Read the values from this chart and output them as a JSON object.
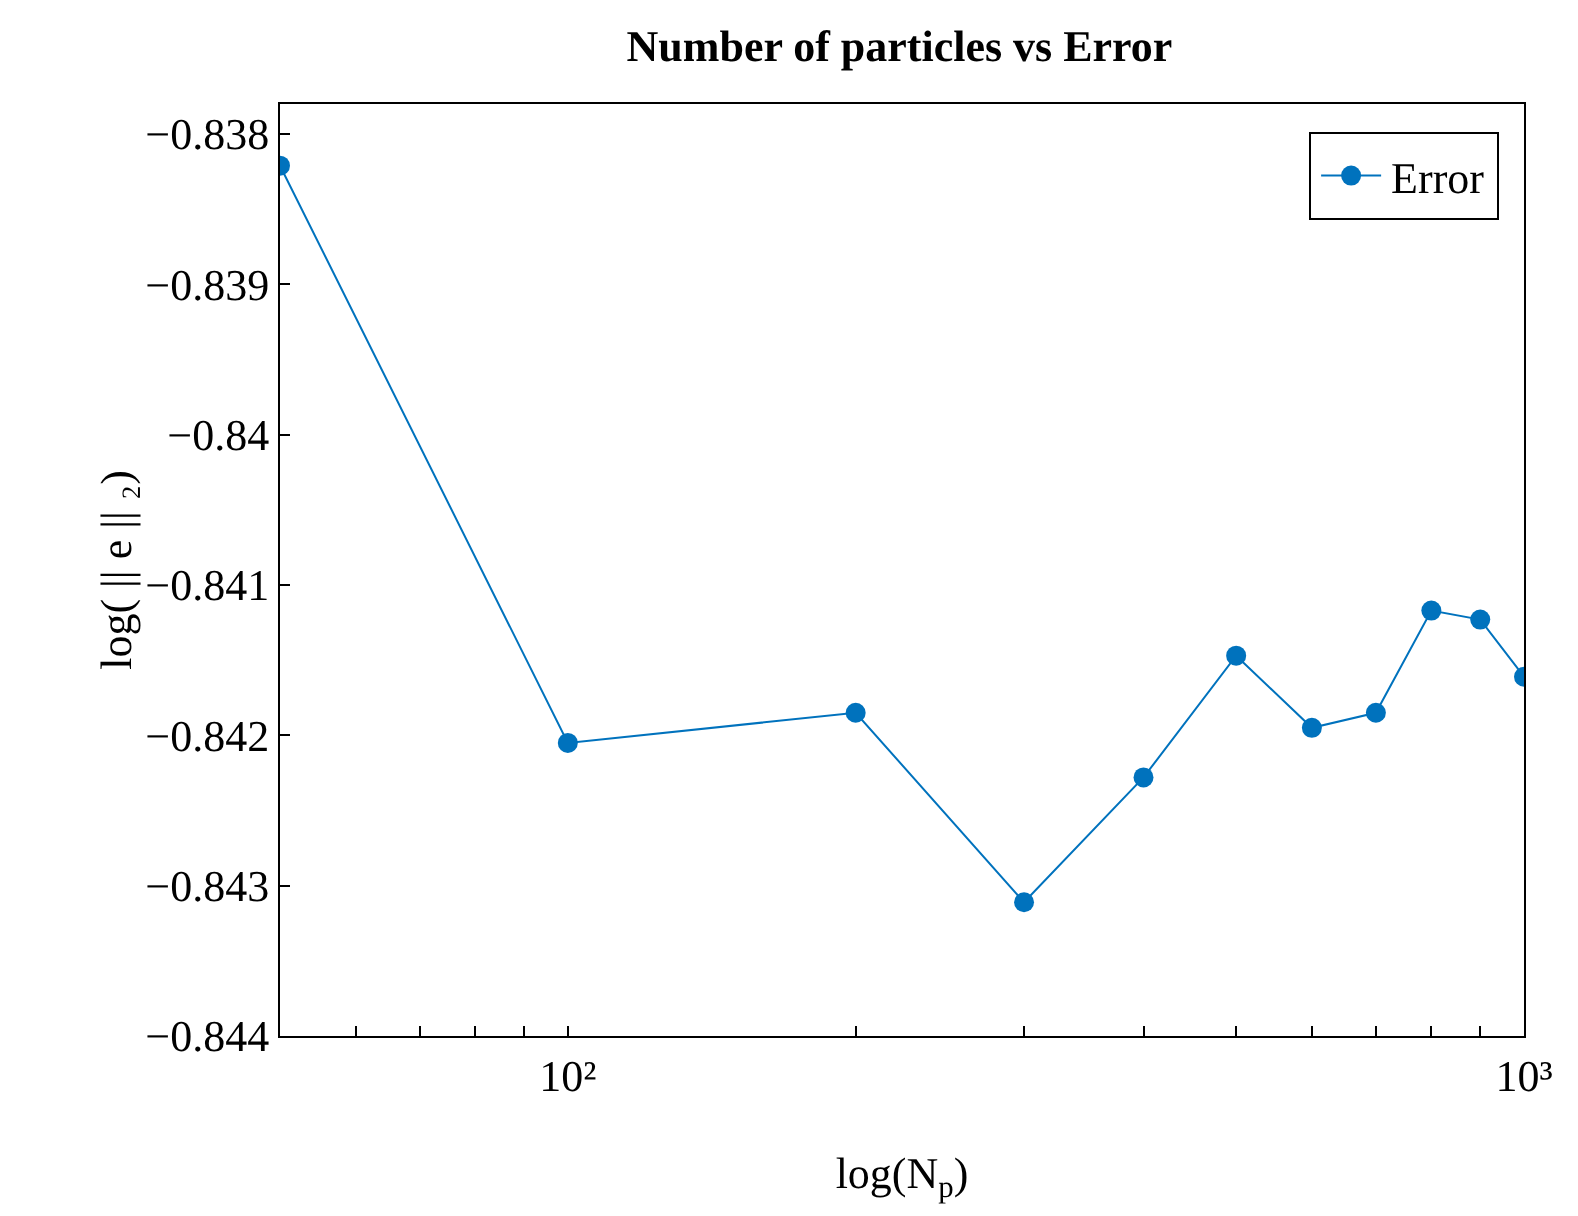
{
  "chart_data": {
    "type": "line",
    "title": "Number of particles vs Error",
    "xlabel": "log(N$_{p}$)",
    "ylabel": "log( || e || ₂)",
    "x": [
      50,
      100,
      200,
      300,
      400,
      500,
      600,
      700,
      800,
      900,
      1000
    ],
    "series": [
      {
        "name": "Error",
        "color": "#0072bd",
        "values": [
          -0.83821,
          -0.84205,
          -0.84185,
          -0.84311,
          -0.84228,
          -0.84147,
          -0.84195,
          -0.84185,
          -0.84117,
          -0.84123,
          -0.84161
        ]
      }
    ],
    "log": "x",
    "xlim": [
      50,
      1000
    ],
    "xticks": [
      {
        "value": 60,
        "label": null
      },
      {
        "value": 70,
        "label": null
      },
      {
        "value": 80,
        "label": null
      },
      {
        "value": 90,
        "label": null
      },
      {
        "value": 100,
        "label": "10²"
      },
      {
        "value": 200,
        "label": null
      },
      {
        "value": 300,
        "label": null
      },
      {
        "value": 400,
        "label": null
      },
      {
        "value": 500,
        "label": null
      },
      {
        "value": 600,
        "label": null
      },
      {
        "value": 700,
        "label": null
      },
      {
        "value": 800,
        "label": null
      },
      {
        "value": 900,
        "label": null
      },
      {
        "value": 1000,
        "label": "10³"
      }
    ],
    "ylim": [
      -0.844,
      -0.8378
    ],
    "yticks": [
      {
        "value": -0.844,
        "label": "−0.844"
      },
      {
        "value": -0.843,
        "label": "−0.843"
      },
      {
        "value": -0.842,
        "label": "−0.842"
      },
      {
        "value": -0.841,
        "label": "−0.841"
      },
      {
        "value": -0.84,
        "label": "−0.84"
      },
      {
        "value": -0.839,
        "label": "−0.839"
      },
      {
        "value": -0.838,
        "label": "−0.838"
      }
    ],
    "legend": "top right",
    "marker": "circle",
    "line_style": "solid"
  }
}
